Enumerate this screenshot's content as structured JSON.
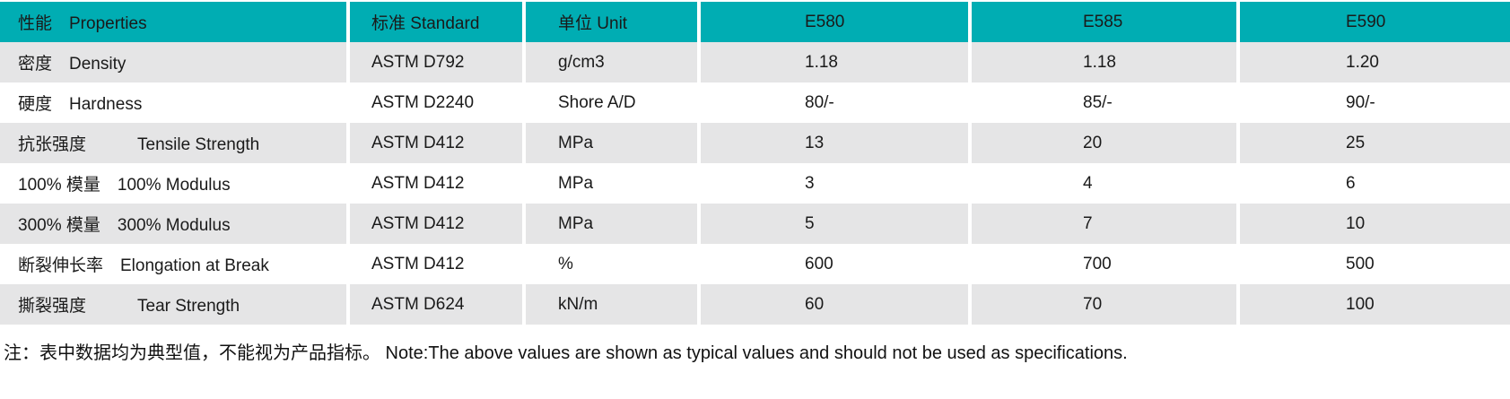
{
  "table": {
    "colors": {
      "header_bg": "#00ADB3",
      "alt_row_bg": "#E5E5E6",
      "text": "#1A1A1A"
    },
    "header": {
      "properties": "性能　Properties",
      "standard": "标准 Standard",
      "unit": "单位 Unit",
      "grade_1": "E580",
      "grade_2": "E585",
      "grade_3": "E590"
    },
    "rows": [
      {
        "property": "密度　Density",
        "standard": "ASTM D792",
        "unit": "g/cm3",
        "e580": "1.18",
        "e585": "1.18",
        "e590": "1.20"
      },
      {
        "property": "硬度　Hardness",
        "standard": "ASTM D2240",
        "unit": "Shore A/D",
        "e580": "80/-",
        "e585": "85/-",
        "e590": "90/-"
      },
      {
        "property": "抗张强度　　　Tensile Strength",
        "standard": "ASTM D412",
        "unit": "MPa",
        "e580": "13",
        "e585": "20",
        "e590": "25"
      },
      {
        "property": "100% 模量　100% Modulus",
        "standard": "ASTM D412",
        "unit": "MPa",
        "e580": "3",
        "e585": "4",
        "e590": "6"
      },
      {
        "property": "300% 模量　300% Modulus",
        "standard": "ASTM D412",
        "unit": "MPa",
        "e580": "5",
        "e585": "7",
        "e590": "10"
      },
      {
        "property": "断裂伸长率　Elongation at Break",
        "standard": "ASTM D412",
        "unit": "%",
        "e580": "600",
        "e585": "700",
        "e590": "500"
      },
      {
        "property": "撕裂强度　　　Tear Strength",
        "standard": "ASTM D624",
        "unit": "kN/m",
        "e580": "60",
        "e585": "70",
        "e590": "100"
      }
    ]
  },
  "note": "注：表中数据均为典型值，不能视为产品指标。 Note:The above values are shown as typical values and should not be used as specifications."
}
